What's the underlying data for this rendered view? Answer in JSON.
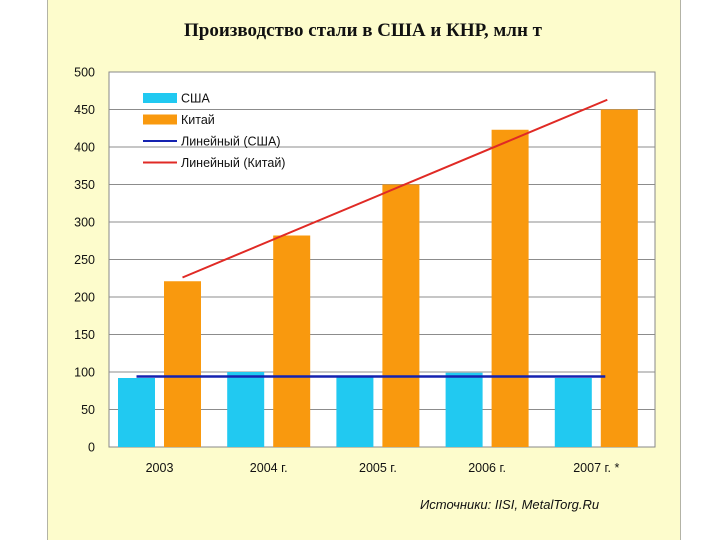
{
  "chart_data": {
    "type": "bar",
    "title": "Производство стали в США и КНР, млн т",
    "categories": [
      "2003",
      "2004 г.",
      "2005 г.",
      "2006 г.",
      "2007 г. *"
    ],
    "series": [
      {
        "name": "США",
        "values": [
          92,
          100,
          95,
          99,
          92
        ],
        "color": "#21c9f1"
      },
      {
        "name": "Китай",
        "values": [
          221,
          282,
          350,
          423,
          450
        ],
        "color": "#f9990e"
      }
    ],
    "trendlines": [
      {
        "name": "Линейный (США)",
        "color": "#1522b0",
        "start": 94,
        "end": 94
      },
      {
        "name": "Линейный (Китай)",
        "color": "#e02a25",
        "start": 226,
        "end": 463
      }
    ],
    "ylim": [
      0,
      500
    ],
    "yticks": [
      0,
      50,
      100,
      150,
      200,
      250,
      300,
      350,
      400,
      450,
      500
    ],
    "grid": true,
    "legend": "top-left",
    "source": "Источники: IISI, MetalTorg.Ru"
  }
}
